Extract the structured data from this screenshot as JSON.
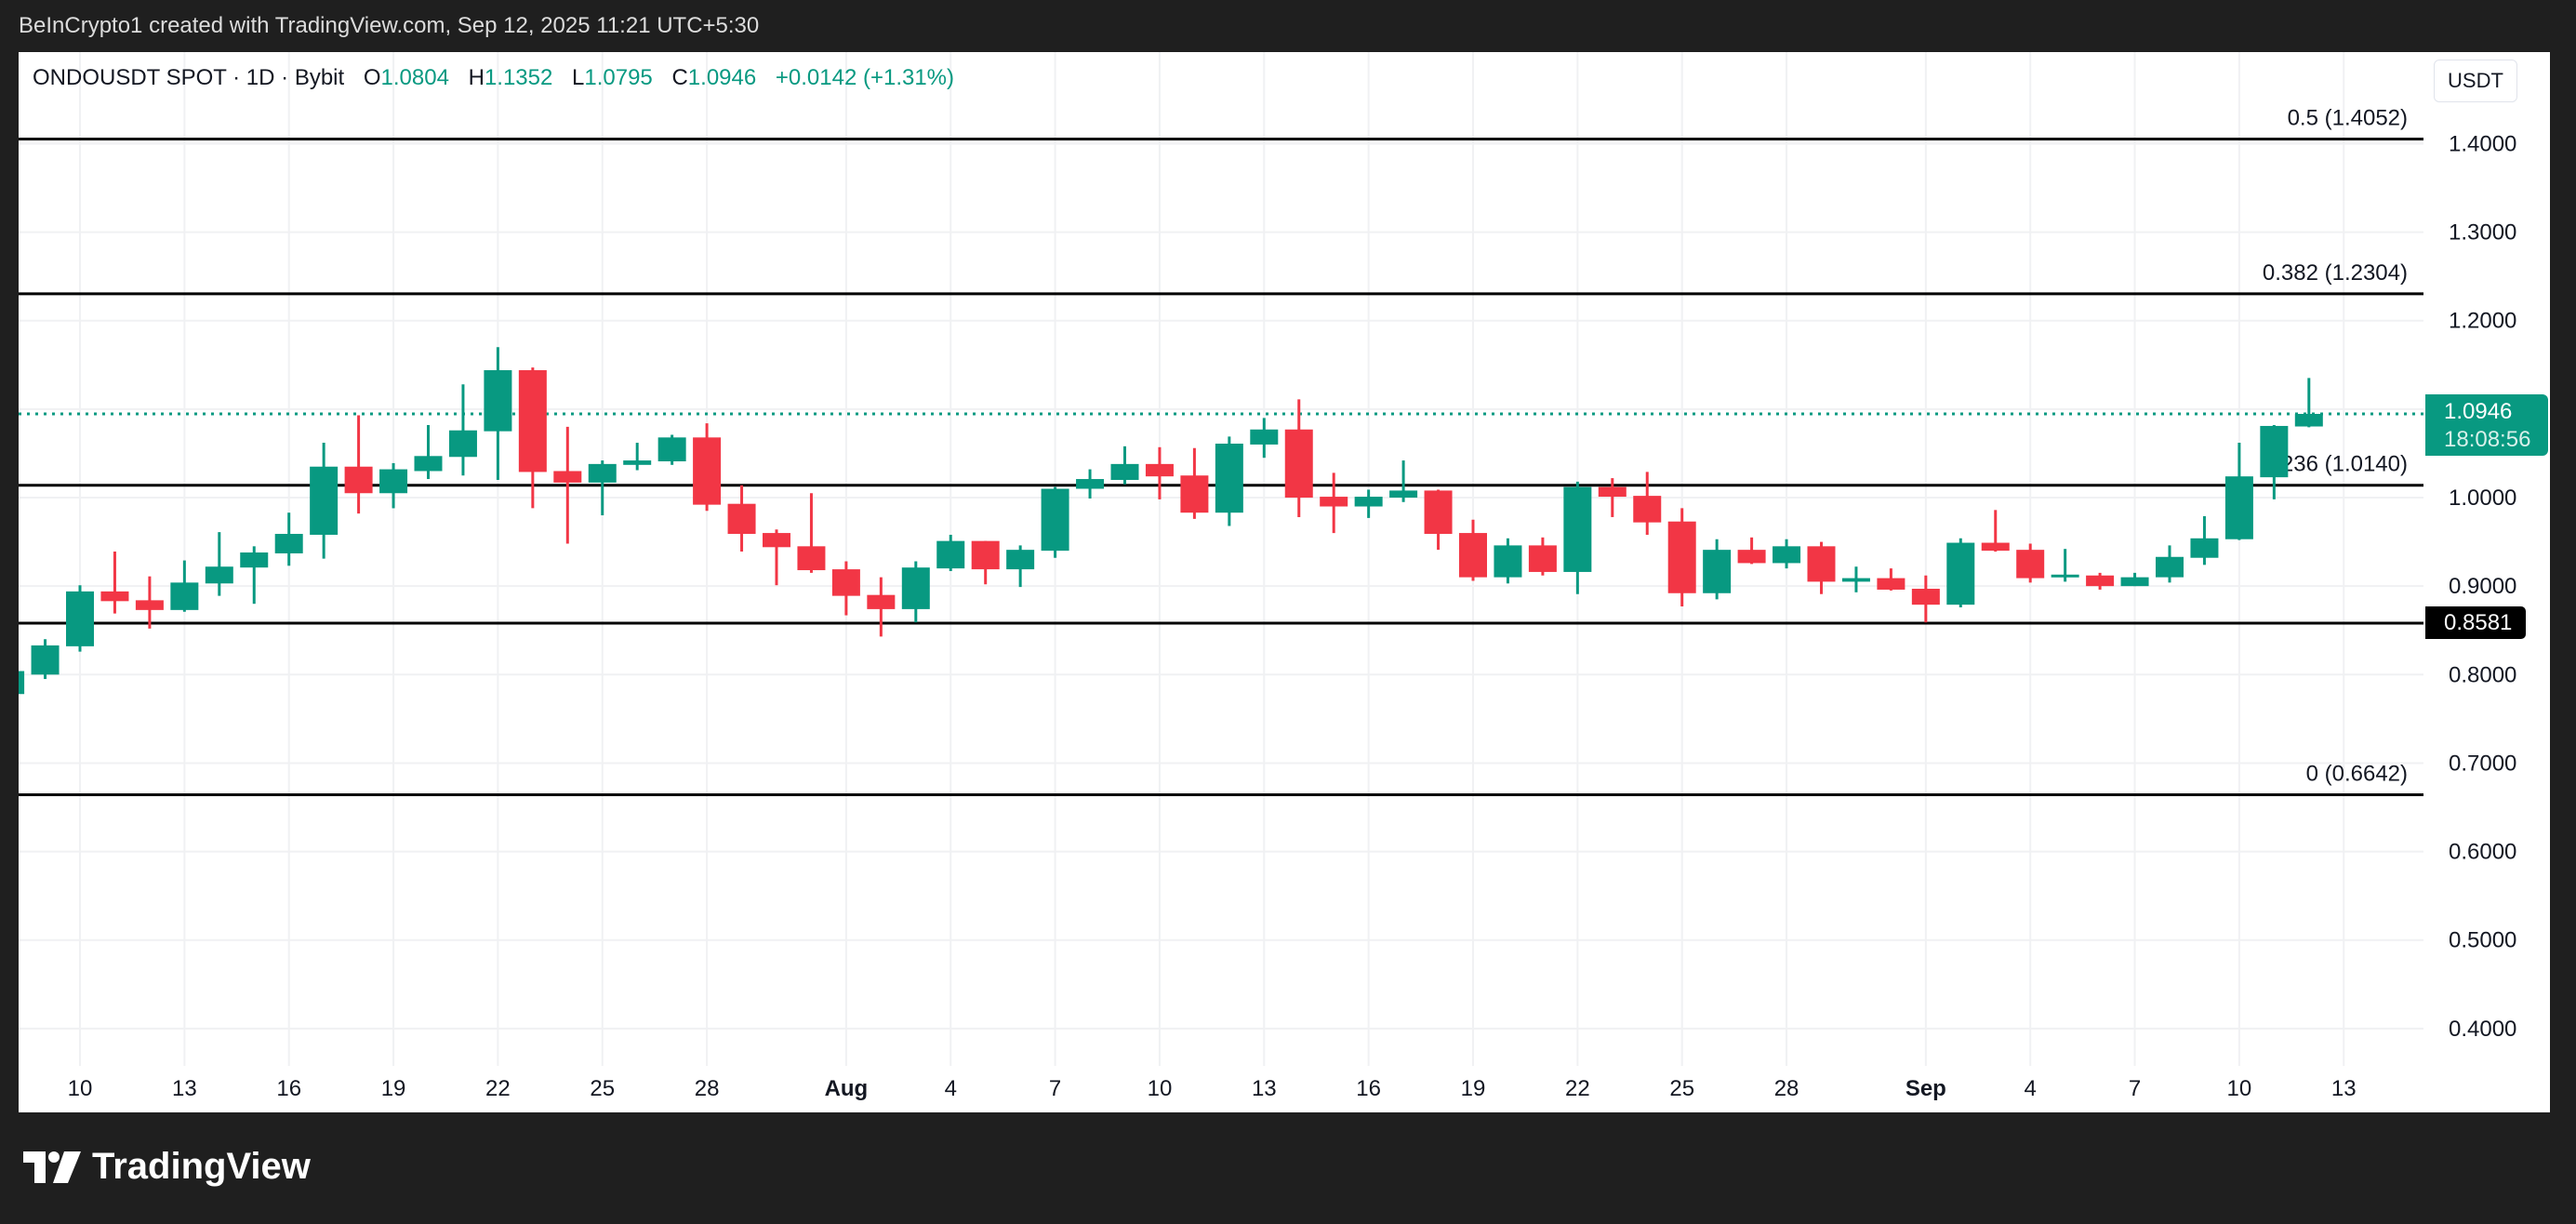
{
  "topbar": {
    "caption": "BeInCrypto1 created with TradingView.com, Sep 12, 2025 11:21 UTC+5:30"
  },
  "legend": {
    "symbol": "ONDOUSDT SPOT · 1D · Bybit",
    "open_label": "O",
    "open": "1.0804",
    "high_label": "H",
    "high": "1.1352",
    "low_label": "L",
    "low": "1.0795",
    "close_label": "C",
    "close": "1.0946",
    "change": "+0.0142 (+1.31%)"
  },
  "price_axis": {
    "currency": "USDT",
    "last_price": "1.0946",
    "countdown": "18:08:56",
    "support_label": "0.8581"
  },
  "footer": {
    "logo_text": "TradingView"
  },
  "colors": {
    "up": "#089981",
    "down": "#F23645",
    "frame": "#1f1f1f",
    "level_line": "#000000"
  },
  "chart_data": {
    "type": "candlestick",
    "symbol": "ONDOUSDT",
    "interval": "1D",
    "ylim": [
      0.35,
      1.45
    ],
    "y_ticks": [
      "1.4000",
      "1.3000",
      "1.2000",
      "1.1000",
      "1.0000",
      "0.9000",
      "0.8000",
      "0.7000",
      "0.6000",
      "0.5000",
      "0.4000"
    ],
    "x_ticks": [
      {
        "label": "10",
        "date": "2025-07-10"
      },
      {
        "label": "13",
        "date": "2025-07-13"
      },
      {
        "label": "16",
        "date": "2025-07-16"
      },
      {
        "label": "19",
        "date": "2025-07-19"
      },
      {
        "label": "22",
        "date": "2025-07-22"
      },
      {
        "label": "25",
        "date": "2025-07-25"
      },
      {
        "label": "28",
        "date": "2025-07-28"
      },
      {
        "label": "Aug",
        "date": "2025-08-01",
        "bold": true
      },
      {
        "label": "4",
        "date": "2025-08-04"
      },
      {
        "label": "7",
        "date": "2025-08-07"
      },
      {
        "label": "10",
        "date": "2025-08-10"
      },
      {
        "label": "13",
        "date": "2025-08-13"
      },
      {
        "label": "16",
        "date": "2025-08-16"
      },
      {
        "label": "19",
        "date": "2025-08-19"
      },
      {
        "label": "22",
        "date": "2025-08-22"
      },
      {
        "label": "25",
        "date": "2025-08-25"
      },
      {
        "label": "28",
        "date": "2025-08-28"
      },
      {
        "label": "Sep",
        "date": "2025-09-01",
        "bold": true
      },
      {
        "label": "4",
        "date": "2025-09-04"
      },
      {
        "label": "7",
        "date": "2025-09-07"
      },
      {
        "label": "10",
        "date": "2025-09-10"
      },
      {
        "label": "13",
        "date": "2025-09-13"
      }
    ],
    "fib_levels": [
      {
        "label": "0.5 (1.4052)",
        "value": 1.4052
      },
      {
        "label": "0.382 (1.2304)",
        "value": 1.2304
      },
      {
        "label": "0.236 (1.0140)",
        "value": 1.014
      },
      {
        "label": "",
        "value": 0.8581
      },
      {
        "label": "0 (0.6642)",
        "value": 0.6642
      }
    ],
    "last_price": 1.0946,
    "candles": [
      [
        "2025-07-08",
        0.778,
        0.81,
        0.775,
        0.804
      ],
      [
        "2025-07-09",
        0.8,
        0.84,
        0.795,
        0.833
      ],
      [
        "2025-07-10",
        0.832,
        0.901,
        0.826,
        0.894
      ],
      [
        "2025-07-11",
        0.894,
        0.939,
        0.869,
        0.883
      ],
      [
        "2025-07-12",
        0.884,
        0.911,
        0.852,
        0.873
      ],
      [
        "2025-07-13",
        0.873,
        0.929,
        0.871,
        0.904
      ],
      [
        "2025-07-14",
        0.903,
        0.961,
        0.889,
        0.922
      ],
      [
        "2025-07-15",
        0.921,
        0.945,
        0.88,
        0.938
      ],
      [
        "2025-07-16",
        0.937,
        0.983,
        0.923,
        0.959
      ],
      [
        "2025-07-17",
        0.958,
        1.062,
        0.931,
        1.035
      ],
      [
        "2025-07-18",
        1.035,
        1.093,
        0.982,
        1.005
      ],
      [
        "2025-07-19",
        1.005,
        1.039,
        0.988,
        1.032
      ],
      [
        "2025-07-20",
        1.03,
        1.082,
        1.021,
        1.047
      ],
      [
        "2025-07-21",
        1.046,
        1.128,
        1.025,
        1.076
      ],
      [
        "2025-07-22",
        1.075,
        1.17,
        1.02,
        1.144
      ],
      [
        "2025-07-23",
        1.144,
        1.147,
        0.988,
        1.029
      ],
      [
        "2025-07-24",
        1.03,
        1.08,
        0.948,
        1.017
      ],
      [
        "2025-07-25",
        1.017,
        1.042,
        0.98,
        1.038
      ],
      [
        "2025-07-26",
        1.037,
        1.062,
        1.031,
        1.042
      ],
      [
        "2025-07-27",
        1.041,
        1.071,
        1.037,
        1.068
      ],
      [
        "2025-07-28",
        1.068,
        1.084,
        0.985,
        0.992
      ],
      [
        "2025-07-29",
        0.993,
        1.014,
        0.939,
        0.959
      ],
      [
        "2025-07-30",
        0.96,
        0.964,
        0.901,
        0.944
      ],
      [
        "2025-07-31",
        0.945,
        1.005,
        0.915,
        0.918
      ],
      [
        "2025-08-01",
        0.919,
        0.928,
        0.867,
        0.889
      ],
      [
        "2025-08-02",
        0.89,
        0.91,
        0.843,
        0.874
      ],
      [
        "2025-08-03",
        0.874,
        0.928,
        0.859,
        0.921
      ],
      [
        "2025-08-04",
        0.92,
        0.958,
        0.917,
        0.951
      ],
      [
        "2025-08-05",
        0.951,
        0.951,
        0.902,
        0.919
      ],
      [
        "2025-08-06",
        0.919,
        0.946,
        0.899,
        0.941
      ],
      [
        "2025-08-07",
        0.94,
        1.012,
        0.932,
        1.01
      ],
      [
        "2025-08-08",
        1.01,
        1.032,
        0.999,
        1.021
      ],
      [
        "2025-08-09",
        1.02,
        1.058,
        1.015,
        1.038
      ],
      [
        "2025-08-10",
        1.038,
        1.057,
        0.998,
        1.024
      ],
      [
        "2025-08-11",
        1.025,
        1.056,
        0.976,
        0.983
      ],
      [
        "2025-08-12",
        0.983,
        1.069,
        0.968,
        1.061
      ],
      [
        "2025-08-13",
        1.06,
        1.09,
        1.045,
        1.077
      ],
      [
        "2025-08-14",
        1.077,
        1.111,
        0.978,
        1.0
      ],
      [
        "2025-08-15",
        1.001,
        1.028,
        0.96,
        0.99
      ],
      [
        "2025-08-16",
        0.99,
        1.009,
        0.977,
        1.001
      ],
      [
        "2025-08-17",
        1.0,
        1.042,
        0.995,
        1.008
      ],
      [
        "2025-08-18",
        1.008,
        1.009,
        0.941,
        0.959
      ],
      [
        "2025-08-19",
        0.96,
        0.975,
        0.906,
        0.91
      ],
      [
        "2025-08-20",
        0.91,
        0.954,
        0.903,
        0.946
      ],
      [
        "2025-08-21",
        0.946,
        0.955,
        0.912,
        0.916
      ],
      [
        "2025-08-22",
        0.916,
        1.018,
        0.891,
        1.012
      ],
      [
        "2025-08-23",
        1.012,
        1.022,
        0.978,
        1.001
      ],
      [
        "2025-08-24",
        1.002,
        1.029,
        0.958,
        0.972
      ],
      [
        "2025-08-25",
        0.973,
        0.988,
        0.877,
        0.892
      ],
      [
        "2025-08-26",
        0.892,
        0.953,
        0.885,
        0.941
      ],
      [
        "2025-08-27",
        0.941,
        0.955,
        0.925,
        0.926
      ],
      [
        "2025-08-28",
        0.926,
        0.953,
        0.92,
        0.945
      ],
      [
        "2025-08-29",
        0.945,
        0.95,
        0.891,
        0.905
      ],
      [
        "2025-08-30",
        0.905,
        0.922,
        0.893,
        0.909
      ],
      [
        "2025-08-31",
        0.909,
        0.92,
        0.895,
        0.896
      ],
      [
        "2025-09-01",
        0.897,
        0.912,
        0.859,
        0.879
      ],
      [
        "2025-09-02",
        0.879,
        0.954,
        0.876,
        0.949
      ],
      [
        "2025-09-03",
        0.949,
        0.986,
        0.939,
        0.94
      ],
      [
        "2025-09-04",
        0.941,
        0.948,
        0.904,
        0.909
      ],
      [
        "2025-09-05",
        0.911,
        0.942,
        0.905,
        0.913
      ],
      [
        "2025-09-06",
        0.912,
        0.915,
        0.896,
        0.9
      ],
      [
        "2025-09-07",
        0.9,
        0.915,
        0.9,
        0.91
      ],
      [
        "2025-09-08",
        0.91,
        0.946,
        0.904,
        0.933
      ],
      [
        "2025-09-09",
        0.932,
        0.979,
        0.924,
        0.954
      ],
      [
        "2025-09-10",
        0.953,
        1.062,
        0.952,
        1.024
      ],
      [
        "2025-09-11",
        1.023,
        1.082,
        0.998,
        1.081
      ],
      [
        "2025-09-12",
        1.0804,
        1.1352,
        1.0795,
        1.0946
      ]
    ]
  }
}
